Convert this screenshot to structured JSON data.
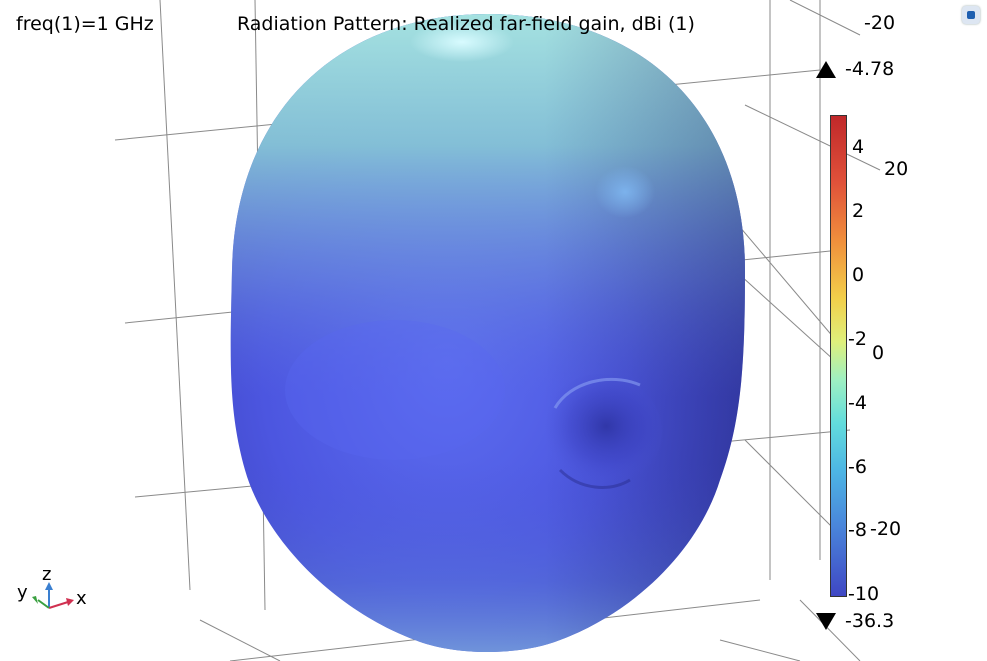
{
  "header": {
    "freq_label": "freq(1)=1 GHz",
    "title": "Radiation Pattern: Realized far-field gain, dBi (1)"
  },
  "colorbar": {
    "max_label": "-4.78",
    "min_label": "-36.3",
    "ticks": [
      "4",
      "2",
      "0",
      "-2",
      "-4",
      "-6",
      "-8",
      "-10"
    ],
    "gradient_colors": [
      "#c0282a",
      "#f08f3c",
      "#f2cf4a",
      "#dff07b",
      "#62dcdc",
      "#4a87db",
      "#3f47c4"
    ]
  },
  "axis_ticks": [
    "-20",
    "20",
    "0",
    "-20"
  ],
  "triad": {
    "x": "x",
    "y": "y",
    "z": "z"
  },
  "colors": {
    "surface_top": "#a6e4e4",
    "surface_mid": "#6a7fe8",
    "surface_bottom": "#4a4fd8",
    "grid": "#8a8a8a"
  },
  "icons": [
    "max-triangle-icon",
    "min-triangle-icon",
    "axis-triad-icon",
    "view-toggle-icon"
  ]
}
